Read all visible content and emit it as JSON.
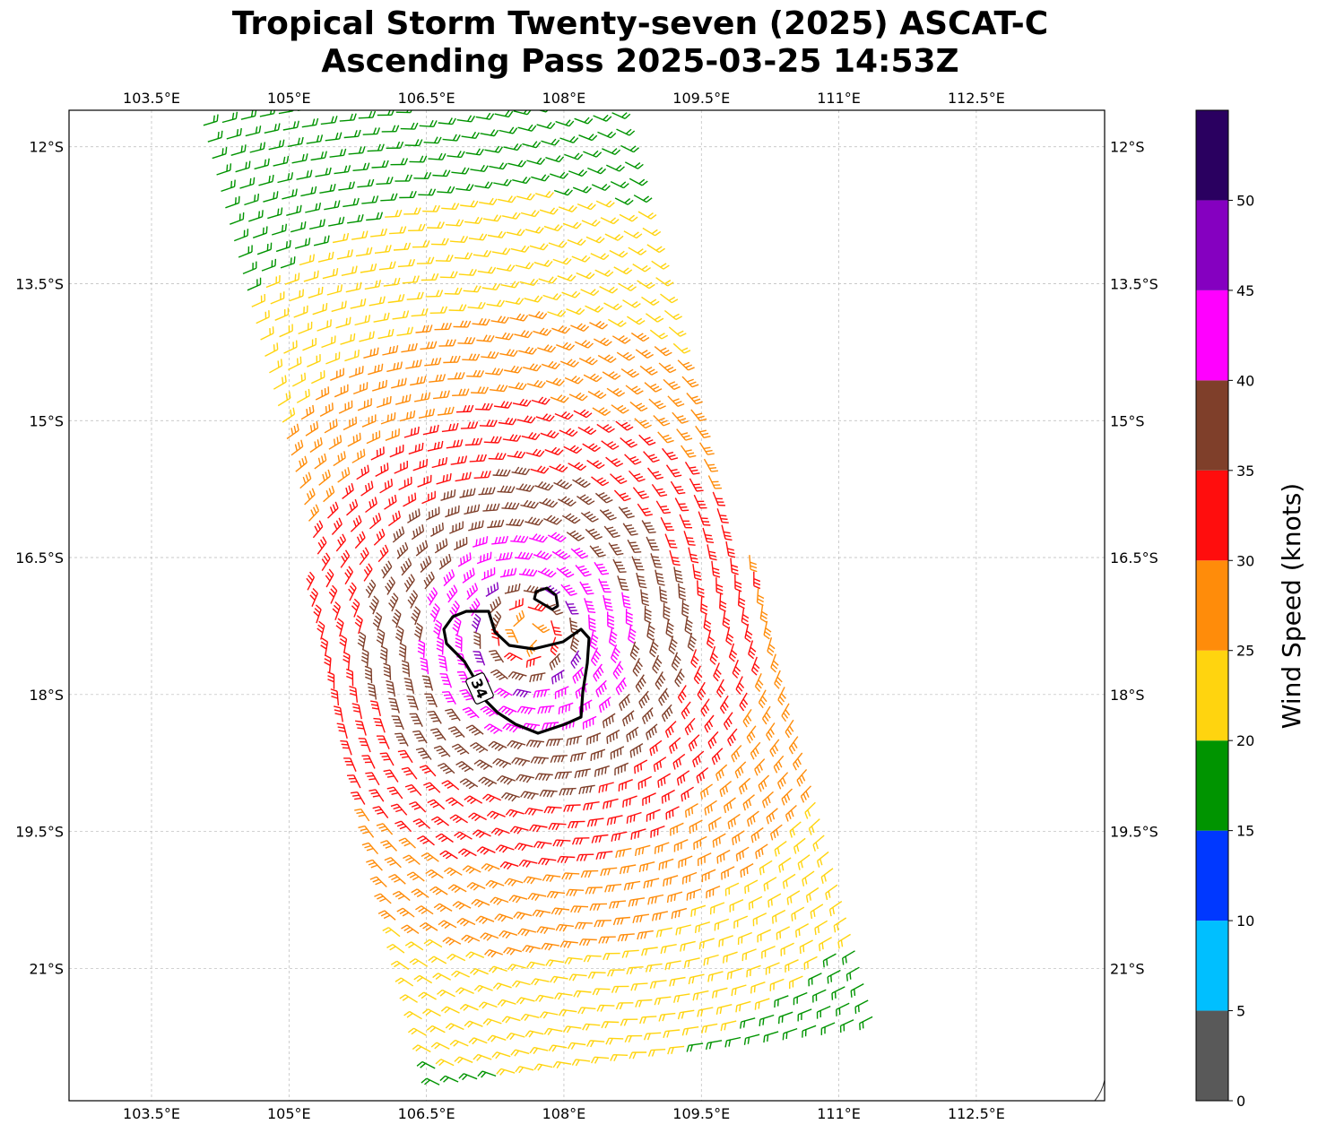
{
  "title": {
    "line1": "Tropical Storm Twenty-seven (2025) ASCAT-C",
    "line2": "Ascending Pass 2025-03-25 14:53Z"
  },
  "map": {
    "lon_range": [
      102.6,
      113.9
    ],
    "lat_range": [
      -22.45,
      -11.6
    ],
    "lon_ticks": [
      103.5,
      105,
      106.5,
      108,
      109.5,
      111,
      112.5
    ],
    "lon_tick_labels": [
      "103.5°E",
      "105°E",
      "106.5°E",
      "108°E",
      "109.5°E",
      "111°E",
      "112.5°E"
    ],
    "lat_ticks": [
      -12,
      -13.5,
      -15,
      -16.5,
      -18,
      -19.5,
      -21
    ],
    "lat_tick_labels": [
      "12°S",
      "13.5°S",
      "15°S",
      "16.5°S",
      "18°S",
      "19.5°S",
      "21°S"
    ],
    "gridlines": true,
    "storm_center": {
      "lon": 107.6,
      "lat": -17.35
    },
    "contour": {
      "level": 34,
      "label": "34"
    },
    "barbs": "wind barbs (knots), cyclonic circulation around storm center"
  },
  "colorbar": {
    "label": "Wind Speed (knots)",
    "bounds": [
      0,
      5,
      10,
      15,
      20,
      25,
      30,
      35,
      40,
      45,
      50
    ],
    "tick_labels": [
      "0",
      "5",
      "10",
      "15",
      "20",
      "25",
      "30",
      "35",
      "40",
      "45",
      "50"
    ],
    "colors": [
      "#595959",
      "#00bfff",
      "#0038ff",
      "#009400",
      "#ffd40f",
      "#ff8c0a",
      "#ff0d0d",
      "#7f3f2a",
      "#ff00ff",
      "#8500c0",
      "#2a0060"
    ]
  }
}
